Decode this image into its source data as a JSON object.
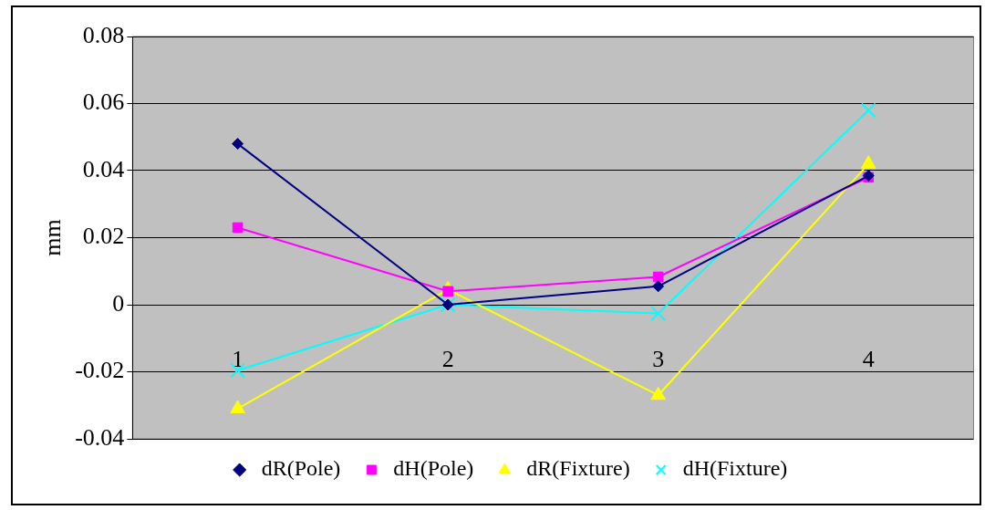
{
  "chart_data": {
    "type": "line",
    "ylabel": "mm",
    "categories": [
      "1",
      "2",
      "3",
      "4"
    ],
    "series": [
      {
        "name": "dR(Pole)",
        "color": "#000080",
        "marker": "diamond",
        "values": [
          0.048,
          0,
          0.0055,
          0.0385
        ]
      },
      {
        "name": "dH(Pole)",
        "color": "#ff00ff",
        "marker": "square",
        "values": [
          0.023,
          0.004,
          0.0083,
          0.038
        ]
      },
      {
        "name": "dR(Fixture)",
        "color": "#ffff00",
        "marker": "triangle",
        "values": [
          -0.031,
          0.0045,
          -0.027,
          0.042
        ]
      },
      {
        "name": "dH(Fixture)",
        "color": "#00ffff",
        "marker": "cross",
        "values": [
          -0.0196,
          0,
          -0.0026,
          0.058
        ]
      }
    ],
    "ylim": [
      -0.04,
      0.08
    ],
    "yticks": [
      -0.04,
      -0.02,
      0,
      0.02,
      0.04,
      0.06,
      0.08
    ],
    "grid": "y",
    "legend": "bottom"
  }
}
